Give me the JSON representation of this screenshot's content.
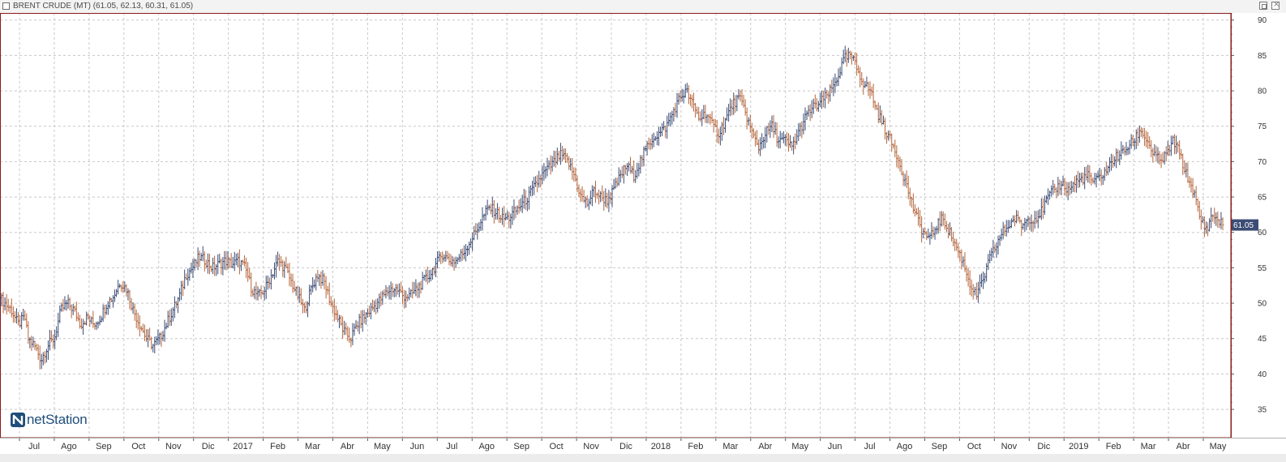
{
  "window": {
    "title": "BRENT CRUDE (MT) (61.05, 62.13, 60.31, 61.05)",
    "icons": [
      "window-icon",
      "restore-icon",
      "close-icon"
    ]
  },
  "logo": {
    "text": "netStation"
  },
  "colors": {
    "up_bar": "#3c4c74",
    "down_bar": "#b5653c",
    "grid": "#c8c8c8",
    "frame": "#8b1a1a",
    "price_tag_bg": "#3c4c74",
    "price_tag_text": "#ffffff"
  },
  "chart_data": {
    "type": "ohlc",
    "title": "BRENT CRUDE (MT)",
    "last_ohlc": {
      "open": 61.05,
      "high": 62.13,
      "low": 60.31,
      "close": 61.05
    },
    "last_price_label": "61.05",
    "y_axis": {
      "position": "right",
      "ylim": [
        31,
        91
      ],
      "ticks": [
        35,
        40,
        45,
        50,
        55,
        60,
        65,
        70,
        75,
        80,
        85,
        90
      ]
    },
    "x_labels": [
      "Jul",
      "Ago",
      "Sep",
      "Oct",
      "Nov",
      "Dic",
      "2017",
      "Feb",
      "Mar",
      "Abr",
      "May",
      "Jun",
      "Jul",
      "Ago",
      "Sep",
      "Oct",
      "Nov",
      "Dic",
      "2018",
      "Feb",
      "Mar",
      "Abr",
      "May",
      "Jun",
      "Jul",
      "Ago",
      "Sep",
      "Oct",
      "Nov",
      "Dic",
      "2019",
      "Feb",
      "Mar",
      "Abr",
      "May"
    ],
    "grid": true,
    "series": [
      {
        "values": [
          [
            0,
            50.5
          ],
          [
            3,
            49
          ],
          [
            5,
            47
          ],
          [
            7,
            48
          ],
          [
            8,
            45
          ],
          [
            10,
            44
          ],
          [
            12,
            42
          ],
          [
            14,
            44
          ],
          [
            16,
            45
          ],
          [
            17,
            47
          ],
          [
            18,
            49
          ],
          [
            20,
            50
          ],
          [
            22,
            49
          ],
          [
            24,
            47
          ],
          [
            26,
            48
          ],
          [
            28,
            47
          ],
          [
            30,
            48
          ],
          [
            32,
            50
          ],
          [
            34,
            51
          ],
          [
            36,
            53
          ],
          [
            38,
            52
          ],
          [
            40,
            49
          ],
          [
            42,
            47
          ],
          [
            44,
            45
          ],
          [
            46,
            44
          ],
          [
            48,
            45
          ],
          [
            50,
            47
          ],
          [
            52,
            49
          ],
          [
            54,
            51
          ],
          [
            56,
            54
          ],
          [
            58,
            55
          ],
          [
            60,
            56.5
          ],
          [
            62,
            56
          ],
          [
            64,
            55
          ],
          [
            66,
            55.5
          ],
          [
            68,
            56
          ],
          [
            70,
            55.5
          ],
          [
            72,
            56
          ],
          [
            74,
            55
          ],
          [
            76,
            52
          ],
          [
            78,
            51
          ],
          [
            80,
            52
          ],
          [
            82,
            54
          ],
          [
            84,
            56
          ],
          [
            86,
            55
          ],
          [
            88,
            53
          ],
          [
            90,
            51
          ],
          [
            92,
            49
          ],
          [
            94,
            52
          ],
          [
            96,
            54
          ],
          [
            98,
            53
          ],
          [
            100,
            50
          ],
          [
            102,
            48
          ],
          [
            104,
            46
          ],
          [
            106,
            45
          ],
          [
            108,
            47
          ],
          [
            110,
            48
          ],
          [
            112,
            49
          ],
          [
            114,
            50
          ],
          [
            116,
            51
          ],
          [
            118,
            52
          ],
          [
            120,
            52
          ],
          [
            122,
            51
          ],
          [
            124,
            51
          ],
          [
            126,
            52
          ],
          [
            128,
            53
          ],
          [
            130,
            54
          ],
          [
            132,
            55.5
          ],
          [
            134,
            57
          ],
          [
            136,
            56
          ],
          [
            138,
            56
          ],
          [
            140,
            57
          ],
          [
            142,
            58.5
          ],
          [
            144,
            60
          ],
          [
            146,
            62
          ],
          [
            148,
            63.5
          ],
          [
            150,
            63
          ],
          [
            152,
            62
          ],
          [
            154,
            62
          ],
          [
            156,
            63
          ],
          [
            158,
            64
          ],
          [
            160,
            65
          ],
          [
            162,
            66.5
          ],
          [
            164,
            68
          ],
          [
            166,
            69
          ],
          [
            168,
            70
          ],
          [
            170,
            71
          ],
          [
            172,
            70
          ],
          [
            174,
            68
          ],
          [
            176,
            65
          ],
          [
            178,
            64
          ],
          [
            180,
            66
          ],
          [
            182,
            65
          ],
          [
            184,
            64.5
          ],
          [
            186,
            66
          ],
          [
            188,
            68
          ],
          [
            190,
            69.5
          ],
          [
            192,
            68
          ],
          [
            194,
            70
          ],
          [
            196,
            72
          ],
          [
            198,
            73.5
          ],
          [
            200,
            74
          ],
          [
            202,
            75
          ],
          [
            204,
            77
          ],
          [
            206,
            79
          ],
          [
            208,
            80
          ],
          [
            210,
            78
          ],
          [
            212,
            76
          ],
          [
            214,
            77
          ],
          [
            216,
            75
          ],
          [
            218,
            74
          ],
          [
            220,
            76
          ],
          [
            222,
            78
          ],
          [
            224,
            79
          ],
          [
            226,
            77
          ],
          [
            228,
            74
          ],
          [
            230,
            72
          ],
          [
            232,
            74
          ],
          [
            234,
            75
          ],
          [
            236,
            73
          ],
          [
            238,
            73
          ],
          [
            240,
            72
          ],
          [
            242,
            74
          ],
          [
            244,
            76
          ],
          [
            246,
            77.5
          ],
          [
            248,
            78
          ],
          [
            250,
            79
          ],
          [
            252,
            80
          ],
          [
            254,
            82
          ],
          [
            256,
            84.5
          ],
          [
            258,
            85
          ],
          [
            260,
            83
          ],
          [
            262,
            81
          ],
          [
            264,
            80
          ],
          [
            266,
            77
          ],
          [
            268,
            75
          ],
          [
            270,
            73
          ],
          [
            272,
            71
          ],
          [
            274,
            68
          ],
          [
            276,
            65
          ],
          [
            278,
            62
          ],
          [
            280,
            60
          ],
          [
            282,
            59
          ],
          [
            284,
            61
          ],
          [
            286,
            62
          ],
          [
            288,
            60
          ],
          [
            290,
            58
          ],
          [
            292,
            56
          ],
          [
            294,
            53
          ],
          [
            296,
            51
          ],
          [
            298,
            53
          ],
          [
            300,
            56
          ],
          [
            302,
            58
          ],
          [
            304,
            60
          ],
          [
            306,
            61
          ],
          [
            308,
            62
          ],
          [
            310,
            61
          ],
          [
            312,
            62
          ],
          [
            314,
            62
          ],
          [
            316,
            63
          ],
          [
            318,
            65
          ],
          [
            320,
            66
          ],
          [
            322,
            67
          ],
          [
            324,
            66
          ],
          [
            326,
            67
          ],
          [
            328,
            67.5
          ],
          [
            330,
            68
          ],
          [
            332,
            67
          ],
          [
            334,
            68
          ],
          [
            336,
            69
          ],
          [
            338,
            70.5
          ],
          [
            340,
            71
          ],
          [
            342,
            72
          ],
          [
            344,
            73
          ],
          [
            346,
            74.5
          ],
          [
            348,
            73
          ],
          [
            350,
            71
          ],
          [
            352,
            70
          ],
          [
            354,
            71
          ],
          [
            356,
            73
          ],
          [
            358,
            71
          ],
          [
            360,
            68
          ],
          [
            362,
            66
          ],
          [
            364,
            62
          ],
          [
            366,
            60.5
          ],
          [
            368,
            62.5
          ],
          [
            370,
            61.5
          ],
          [
            371,
            61.05
          ]
        ]
      }
    ]
  }
}
